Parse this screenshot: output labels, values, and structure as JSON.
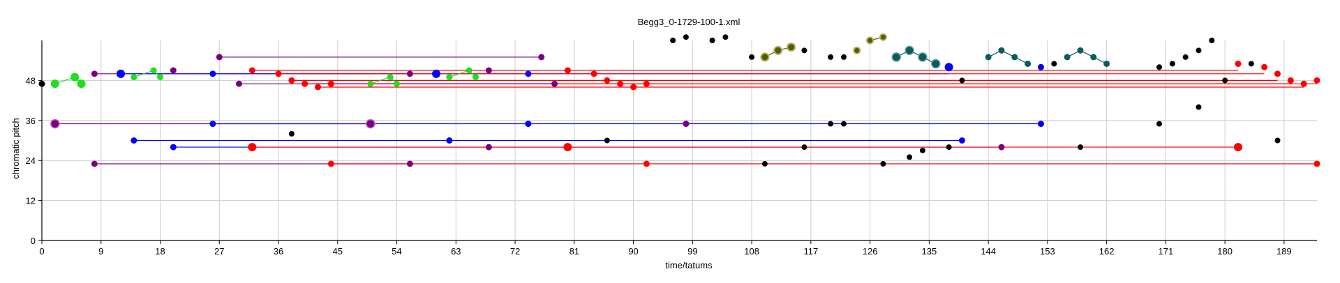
{
  "chart_data": {
    "type": "scatter",
    "title": "Begg3_0-1729-100-1.xml",
    "xlabel": "time/tatums",
    "ylabel": "chromatic pitch",
    "xlim": [
      0,
      194
    ],
    "ylim": [
      0,
      60
    ],
    "x_ticks": [
      0,
      9,
      18,
      27,
      36,
      45,
      54,
      63,
      72,
      81,
      90,
      99,
      108,
      117,
      126,
      135,
      144,
      153,
      162,
      171,
      180,
      189
    ],
    "y_ticks": [
      0,
      12,
      24,
      36,
      48
    ],
    "grid": true,
    "legend": "none",
    "colors": {
      "red": "#ff0000",
      "blue": "#0000ff",
      "purple": "#7a0080",
      "green": "#22dd22",
      "teal": "#0e5b5b",
      "olive": "#5a5a00",
      "black": "#000000"
    },
    "lines": [
      {
        "color": "purple",
        "x": [
          8,
          56
        ],
        "y": [
          50,
          50
        ]
      },
      {
        "color": "blue",
        "x": [
          12,
          138
        ],
        "y": [
          50,
          50
        ]
      },
      {
        "color": "red",
        "x": [
          32,
          182
        ],
        "y": [
          51,
          51
        ]
      },
      {
        "color": "red",
        "x": [
          36,
          186
        ],
        "y": [
          50,
          50
        ]
      },
      {
        "color": "red",
        "x": [
          38,
          188
        ],
        "y": [
          48,
          48
        ]
      },
      {
        "color": "red",
        "x": [
          40,
          190
        ],
        "y": [
          47,
          47
        ]
      },
      {
        "color": "red",
        "x": [
          42,
          192
        ],
        "y": [
          46,
          46
        ]
      },
      {
        "color": "red",
        "x": [
          44,
          194
        ],
        "y": [
          47,
          47
        ]
      },
      {
        "color": "purple",
        "x": [
          27,
          76
        ],
        "y": [
          55,
          55
        ]
      },
      {
        "color": "purple",
        "x": [
          30,
          78
        ],
        "y": [
          47,
          47
        ]
      },
      {
        "color": "purple",
        "x": [
          2,
          50
        ],
        "y": [
          35,
          35
        ]
      },
      {
        "color": "blue",
        "x": [
          26,
          152
        ],
        "y": [
          35,
          35
        ]
      },
      {
        "color": "blue",
        "x": [
          14,
          140
        ],
        "y": [
          30,
          30
        ]
      },
      {
        "color": "blue",
        "x": [
          20,
          146
        ],
        "y": [
          28,
          28
        ]
      },
      {
        "color": "red",
        "x": [
          32,
          182
        ],
        "y": [
          28,
          28
        ]
      },
      {
        "color": "purple",
        "x": [
          8,
          56
        ],
        "y": [
          23,
          23
        ]
      },
      {
        "color": "red",
        "x": [
          44,
          194
        ],
        "y": [
          23,
          23
        ]
      }
    ],
    "chains": [
      {
        "color": "green",
        "x": [
          2,
          5,
          6
        ],
        "y": [
          47,
          49,
          47
        ]
      },
      {
        "color": "green",
        "x": [
          14,
          17,
          18
        ],
        "y": [
          49,
          51,
          49
        ]
      },
      {
        "color": "green",
        "x": [
          50,
          53,
          54
        ],
        "y": [
          47,
          49,
          47
        ]
      },
      {
        "color": "green",
        "x": [
          62,
          65,
          66
        ],
        "y": [
          49,
          51,
          49
        ]
      },
      {
        "color": "olive",
        "x": [
          110,
          112,
          114
        ],
        "y": [
          55,
          57,
          58
        ]
      },
      {
        "color": "olive",
        "x": [
          126,
          128
        ],
        "y": [
          60,
          61
        ]
      },
      {
        "color": "teal",
        "x": [
          130,
          132,
          134,
          136
        ],
        "y": [
          55,
          57,
          55,
          53
        ]
      },
      {
        "color": "teal",
        "x": [
          144,
          146,
          148,
          150
        ],
        "y": [
          55,
          57,
          55,
          53
        ]
      },
      {
        "color": "teal",
        "x": [
          156,
          158,
          160,
          162
        ],
        "y": [
          55,
          57,
          55,
          53
        ]
      }
    ],
    "points": [
      {
        "x": 0,
        "y": 47,
        "c": "black",
        "s": 4.5
      },
      {
        "x": 2,
        "y": 47,
        "c": "green",
        "s": 6
      },
      {
        "x": 5,
        "y": 49,
        "c": "green",
        "s": 6
      },
      {
        "x": 6,
        "y": 47,
        "c": "green",
        "s": 6
      },
      {
        "x": 8,
        "y": 50,
        "c": "purple",
        "s": 4.5
      },
      {
        "x": 12,
        "y": 50,
        "c": "blue",
        "s": 6
      },
      {
        "x": 14,
        "y": 49,
        "c": "green",
        "s": 4.5
      },
      {
        "x": 17,
        "y": 51,
        "c": "green",
        "s": 4.5
      },
      {
        "x": 18,
        "y": 49,
        "c": "green",
        "s": 4.5
      },
      {
        "x": 20,
        "y": 51,
        "c": "purple",
        "s": 4.5
      },
      {
        "x": 26,
        "y": 50,
        "c": "blue",
        "s": 4.5
      },
      {
        "x": 27,
        "y": 55,
        "c": "purple",
        "s": 4.5
      },
      {
        "x": 30,
        "y": 47,
        "c": "purple",
        "s": 4.5
      },
      {
        "x": 32,
        "y": 51,
        "c": "red",
        "s": 4.5
      },
      {
        "x": 36,
        "y": 50,
        "c": "red",
        "s": 4.5
      },
      {
        "x": 38,
        "y": 48,
        "c": "red",
        "s": 4.5
      },
      {
        "x": 40,
        "y": 47,
        "c": "red",
        "s": 4.5
      },
      {
        "x": 42,
        "y": 46,
        "c": "red",
        "s": 4.5
      },
      {
        "x": 44,
        "y": 47,
        "c": "red",
        "s": 4.5
      },
      {
        "x": 50,
        "y": 47,
        "c": "green",
        "s": 4.5
      },
      {
        "x": 53,
        "y": 49,
        "c": "green",
        "s": 4.5
      },
      {
        "x": 54,
        "y": 47,
        "c": "green",
        "s": 4.5
      },
      {
        "x": 56,
        "y": 50,
        "c": "purple",
        "s": 4.5
      },
      {
        "x": 60,
        "y": 50,
        "c": "blue",
        "s": 6
      },
      {
        "x": 62,
        "y": 49,
        "c": "green",
        "s": 4.5
      },
      {
        "x": 65,
        "y": 51,
        "c": "green",
        "s": 4.5
      },
      {
        "x": 66,
        "y": 49,
        "c": "green",
        "s": 4.5
      },
      {
        "x": 68,
        "y": 51,
        "c": "purple",
        "s": 4.5
      },
      {
        "x": 74,
        "y": 50,
        "c": "blue",
        "s": 4.5
      },
      {
        "x": 76,
        "y": 55,
        "c": "purple",
        "s": 4.5
      },
      {
        "x": 78,
        "y": 47,
        "c": "purple",
        "s": 4.5
      },
      {
        "x": 80,
        "y": 51,
        "c": "red",
        "s": 4.5
      },
      {
        "x": 84,
        "y": 50,
        "c": "red",
        "s": 4.5
      },
      {
        "x": 86,
        "y": 48,
        "c": "red",
        "s": 4.5
      },
      {
        "x": 88,
        "y": 47,
        "c": "red",
        "s": 4.5
      },
      {
        "x": 90,
        "y": 46,
        "c": "red",
        "s": 4.5
      },
      {
        "x": 92,
        "y": 47,
        "c": "red",
        "s": 4.5
      },
      {
        "x": 96,
        "y": 60,
        "c": "black",
        "s": 4
      },
      {
        "x": 98,
        "y": 61,
        "c": "black",
        "s": 4
      },
      {
        "x": 102,
        "y": 60,
        "c": "black",
        "s": 4
      },
      {
        "x": 104,
        "y": 61,
        "c": "black",
        "s": 4
      },
      {
        "x": 108,
        "y": 55,
        "c": "black",
        "s": 4
      },
      {
        "x": 110,
        "y": 55,
        "c": "olive",
        "s": 5.5
      },
      {
        "x": 112,
        "y": 57,
        "c": "olive",
        "s": 5.5
      },
      {
        "x": 114,
        "y": 58,
        "c": "olive",
        "s": 5.5
      },
      {
        "x": 116,
        "y": 57,
        "c": "black",
        "s": 4
      },
      {
        "x": 120,
        "y": 55,
        "c": "black",
        "s": 4
      },
      {
        "x": 122,
        "y": 55,
        "c": "black",
        "s": 4
      },
      {
        "x": 124,
        "y": 57,
        "c": "olive",
        "s": 4.5
      },
      {
        "x": 126,
        "y": 60,
        "c": "olive",
        "s": 4.5
      },
      {
        "x": 128,
        "y": 61,
        "c": "olive",
        "s": 4.5
      },
      {
        "x": 130,
        "y": 55,
        "c": "teal",
        "s": 6
      },
      {
        "x": 132,
        "y": 57,
        "c": "teal",
        "s": 6
      },
      {
        "x": 134,
        "y": 55,
        "c": "teal",
        "s": 6
      },
      {
        "x": 136,
        "y": 53,
        "c": "teal",
        "s": 6
      },
      {
        "x": 138,
        "y": 52,
        "c": "blue",
        "s": 6
      },
      {
        "x": 140,
        "y": 48,
        "c": "black",
        "s": 4
      },
      {
        "x": 144,
        "y": 55,
        "c": "teal",
        "s": 4.5
      },
      {
        "x": 146,
        "y": 57,
        "c": "teal",
        "s": 4.5
      },
      {
        "x": 148,
        "y": 55,
        "c": "teal",
        "s": 4.5
      },
      {
        "x": 150,
        "y": 53,
        "c": "teal",
        "s": 4.5
      },
      {
        "x": 152,
        "y": 52,
        "c": "blue",
        "s": 4.5
      },
      {
        "x": 154,
        "y": 53,
        "c": "black",
        "s": 4
      },
      {
        "x": 156,
        "y": 55,
        "c": "teal",
        "s": 4.5
      },
      {
        "x": 158,
        "y": 57,
        "c": "teal",
        "s": 4.5
      },
      {
        "x": 160,
        "y": 55,
        "c": "teal",
        "s": 4.5
      },
      {
        "x": 162,
        "y": 53,
        "c": "teal",
        "s": 4.5
      },
      {
        "x": 170,
        "y": 52,
        "c": "black",
        "s": 4
      },
      {
        "x": 172,
        "y": 53,
        "c": "black",
        "s": 4
      },
      {
        "x": 174,
        "y": 55,
        "c": "black",
        "s": 4
      },
      {
        "x": 176,
        "y": 57,
        "c": "black",
        "s": 4
      },
      {
        "x": 178,
        "y": 60,
        "c": "black",
        "s": 4
      },
      {
        "x": 180,
        "y": 48,
        "c": "black",
        "s": 4
      },
      {
        "x": 182,
        "y": 53,
        "c": "red",
        "s": 4.5
      },
      {
        "x": 184,
        "y": 53,
        "c": "black",
        "s": 4
      },
      {
        "x": 186,
        "y": 52,
        "c": "red",
        "s": 4.5
      },
      {
        "x": 188,
        "y": 50,
        "c": "red",
        "s": 4.5
      },
      {
        "x": 190,
        "y": 48,
        "c": "red",
        "s": 4.5
      },
      {
        "x": 192,
        "y": 47,
        "c": "red",
        "s": 4.5
      },
      {
        "x": 194,
        "y": 48,
        "c": "red",
        "s": 4.5
      },
      {
        "x": 2,
        "y": 35,
        "c": "purple",
        "s": 6
      },
      {
        "x": 26,
        "y": 35,
        "c": "blue",
        "s": 4.5
      },
      {
        "x": 38,
        "y": 32,
        "c": "black",
        "s": 4
      },
      {
        "x": 50,
        "y": 35,
        "c": "purple",
        "s": 6
      },
      {
        "x": 74,
        "y": 35,
        "c": "blue",
        "s": 4.5
      },
      {
        "x": 98,
        "y": 35,
        "c": "purple",
        "s": 4.5
      },
      {
        "x": 120,
        "y": 35,
        "c": "black",
        "s": 4
      },
      {
        "x": 122,
        "y": 35,
        "c": "black",
        "s": 4
      },
      {
        "x": 152,
        "y": 35,
        "c": "blue",
        "s": 4.5
      },
      {
        "x": 170,
        "y": 35,
        "c": "black",
        "s": 4
      },
      {
        "x": 176,
        "y": 40,
        "c": "black",
        "s": 4
      },
      {
        "x": 14,
        "y": 30,
        "c": "blue",
        "s": 4.5
      },
      {
        "x": 62,
        "y": 30,
        "c": "blue",
        "s": 4.5
      },
      {
        "x": 86,
        "y": 30,
        "c": "black",
        "s": 4
      },
      {
        "x": 140,
        "y": 30,
        "c": "blue",
        "s": 4.5
      },
      {
        "x": 188,
        "y": 30,
        "c": "black",
        "s": 4
      },
      {
        "x": 20,
        "y": 28,
        "c": "blue",
        "s": 4.5
      },
      {
        "x": 32,
        "y": 28,
        "c": "red",
        "s": 6
      },
      {
        "x": 68,
        "y": 28,
        "c": "purple",
        "s": 4.5
      },
      {
        "x": 80,
        "y": 28,
        "c": "red",
        "s": 6
      },
      {
        "x": 116,
        "y": 28,
        "c": "black",
        "s": 4
      },
      {
        "x": 134,
        "y": 27,
        "c": "black",
        "s": 4
      },
      {
        "x": 138,
        "y": 28,
        "c": "black",
        "s": 4
      },
      {
        "x": 146,
        "y": 28,
        "c": "purple",
        "s": 4.5
      },
      {
        "x": 158,
        "y": 28,
        "c": "black",
        "s": 4
      },
      {
        "x": 182,
        "y": 28,
        "c": "red",
        "s": 6
      },
      {
        "x": 132,
        "y": 25,
        "c": "black",
        "s": 4
      },
      {
        "x": 8,
        "y": 23,
        "c": "purple",
        "s": 4.5
      },
      {
        "x": 44,
        "y": 23,
        "c": "red",
        "s": 4.5
      },
      {
        "x": 56,
        "y": 23,
        "c": "purple",
        "s": 4.5
      },
      {
        "x": 92,
        "y": 23,
        "c": "red",
        "s": 4.5
      },
      {
        "x": 110,
        "y": 23,
        "c": "black",
        "s": 4
      },
      {
        "x": 128,
        "y": 23,
        "c": "black",
        "s": 4
      },
      {
        "x": 194,
        "y": 23,
        "c": "red",
        "s": 4.5
      }
    ]
  }
}
